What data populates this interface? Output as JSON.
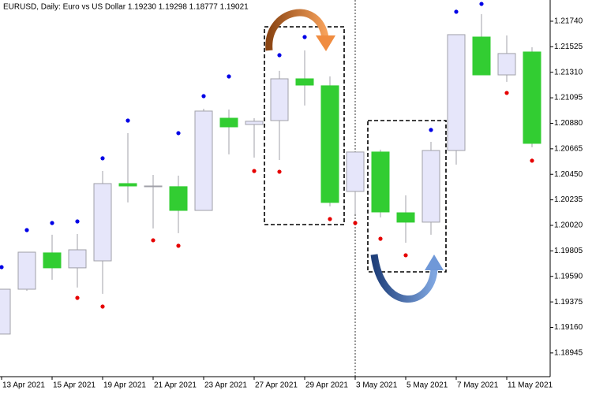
{
  "chart_data": {
    "type": "candlestick",
    "title": "EURUSD, Daily:  Euro vs US Dollar  1.19230 1.19298 1.18777 1.19021",
    "categories": [
      "13 Apr 2021",
      null,
      "15 Apr 2021",
      null,
      "19 Apr 2021",
      null,
      "21 Apr 2021",
      null,
      "23 Apr 2021",
      null,
      "27 Apr 2021",
      null,
      "29 Apr 2021",
      null,
      "3 May 2021",
      null,
      "5 May 2021",
      null,
      "7 May 2021",
      null,
      "11 May 2021",
      null
    ],
    "open": [
      1.19104,
      1.19482,
      1.19788,
      1.19662,
      1.19721,
      1.20372,
      1.20346,
      1.20346,
      1.20146,
      1.20923,
      1.2087,
      1.20903,
      1.21255,
      1.21196,
      1.20306,
      1.20638,
      1.20126,
      1.20047,
      1.20651,
      1.21607,
      1.21288,
      1.21481
    ],
    "high": [
      1.19482,
      1.19794,
      1.19941,
      1.19947,
      1.20478,
      1.20797,
      1.20445,
      1.20439,
      1.21003,
      1.20996,
      1.20923,
      1.21322,
      1.21494,
      1.21275,
      1.20638,
      1.20658,
      1.20273,
      1.20724,
      1.21627,
      1.218,
      1.2162,
      1.21521
    ],
    "low": [
      1.19104,
      1.19469,
      1.19562,
      1.19496,
      1.19443,
      1.20213,
      1.19994,
      1.19954,
      1.20146,
      1.20618,
      1.20591,
      1.20571,
      1.2103,
      1.2018,
      1.20113,
      1.20087,
      1.19874,
      1.19941,
      1.20532,
      1.21288,
      1.21229,
      1.20678
    ],
    "close": [
      1.19482,
      1.19794,
      1.19662,
      1.19814,
      1.20372,
      1.20352,
      1.20352,
      1.20146,
      1.20983,
      1.2085,
      1.20897,
      1.21255,
      1.21202,
      1.20213,
      1.20638,
      1.20133,
      1.20047,
      1.20651,
      1.21627,
      1.21288,
      1.21468,
      1.20711
    ],
    "upper_dots": [
      1.19668,
      1.1998,
      1.2004,
      1.20053,
      1.20585,
      1.20903,
      null,
      1.20797,
      1.21109,
      1.21275,
      null,
      1.21454,
      1.21607,
      null,
      null,
      null,
      null,
      1.20824,
      1.2182,
      1.21886,
      null,
      null
    ],
    "lower_dots": [
      null,
      null,
      null,
      1.19409,
      1.19336,
      null,
      1.19894,
      1.19848,
      null,
      null,
      1.20478,
      1.20472,
      null,
      1.20073,
      1.2004,
      1.19907,
      1.19768,
      null,
      null,
      null,
      1.21136,
      1.20565
    ],
    "up_color": "#e6e6fa",
    "down_color": "#32cd32",
    "wick_color": "#a0a0a8",
    "upper_dot_color": "#0000e6",
    "lower_dot_color": "#e60000",
    "ylim": [
      1.18745,
      1.21919
    ],
    "yticks": [
      {
        "value": 1.2174,
        "label": "1.21740"
      },
      1.21525,
      {
        "value": 1.2131,
        "label": "1.21310"
      },
      1.21095,
      {
        "value": 1.2088,
        "label": "1.20880"
      },
      1.20665,
      {
        "value": 1.2045,
        "label": "1.20450"
      },
      1.20235,
      {
        "value": 1.2002,
        "label": "1.20020"
      },
      1.19805,
      {
        "value": 1.1959,
        "label": "1.19590"
      },
      1.19375,
      {
        "value": 1.1916,
        "label": "1.19160"
      },
      1.18945
    ]
  }
}
